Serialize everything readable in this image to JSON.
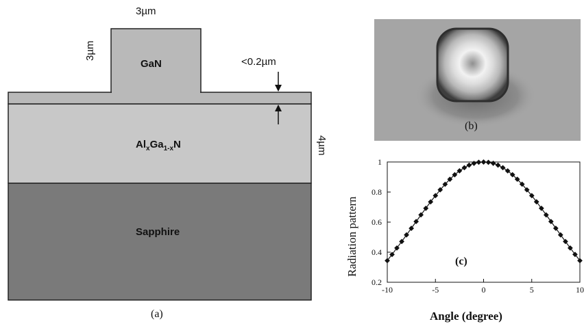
{
  "panel_a": {
    "caption": "(a)",
    "layers": {
      "gan_ridge": "GaN",
      "algan_prefix": "Al",
      "algan_x1": "x",
      "algan_mid": "Ga",
      "algan_sub2": "1-x",
      "algan_suffix": "N",
      "sapphire": "Sapphire"
    },
    "dimensions": {
      "ridge_width": "3µm",
      "ridge_height": "3µm",
      "slab_thickness": "<0.2µm",
      "cladding_thickness": "4µm"
    },
    "colors": {
      "gan": "#b9b9b9",
      "algan": "#c8c8c8",
      "sapphire": "#7a7a7a"
    }
  },
  "panel_b": {
    "caption": "(b)"
  },
  "panel_c": {
    "caption": "(c)",
    "chart_data": {
      "type": "scatter",
      "xlabel": "Angle (degree)",
      "ylabel": "Radiation pattern",
      "xlim": [
        -10,
        10
      ],
      "ylim": [
        0.2,
        1
      ],
      "xticks": [
        "-10",
        "-5",
        "0",
        "5",
        "10"
      ],
      "yticks": [
        "0.2",
        "0.4",
        "0.6",
        "0.8",
        "1"
      ],
      "x": [
        -10,
        -9.5,
        -9,
        -8.5,
        -8,
        -7.5,
        -7,
        -6.5,
        -6,
        -5.5,
        -5,
        -4.5,
        -4,
        -3.5,
        -3,
        -2.5,
        -2,
        -1.5,
        -1,
        -0.5,
        0,
        0.5,
        1,
        1.5,
        2,
        2.5,
        3,
        3.5,
        4,
        4.5,
        5,
        5.5,
        6,
        6.5,
        7,
        7.5,
        8,
        8.5,
        9,
        9.5,
        10
      ],
      "y": [
        0.344,
        0.385,
        0.428,
        0.471,
        0.515,
        0.559,
        0.604,
        0.648,
        0.692,
        0.735,
        0.776,
        0.815,
        0.852,
        0.885,
        0.915,
        0.941,
        0.962,
        0.979,
        0.991,
        0.998,
        1.0,
        0.998,
        0.991,
        0.979,
        0.962,
        0.941,
        0.915,
        0.885,
        0.852,
        0.815,
        0.776,
        0.735,
        0.692,
        0.648,
        0.604,
        0.559,
        0.515,
        0.471,
        0.428,
        0.385,
        0.344
      ]
    }
  }
}
